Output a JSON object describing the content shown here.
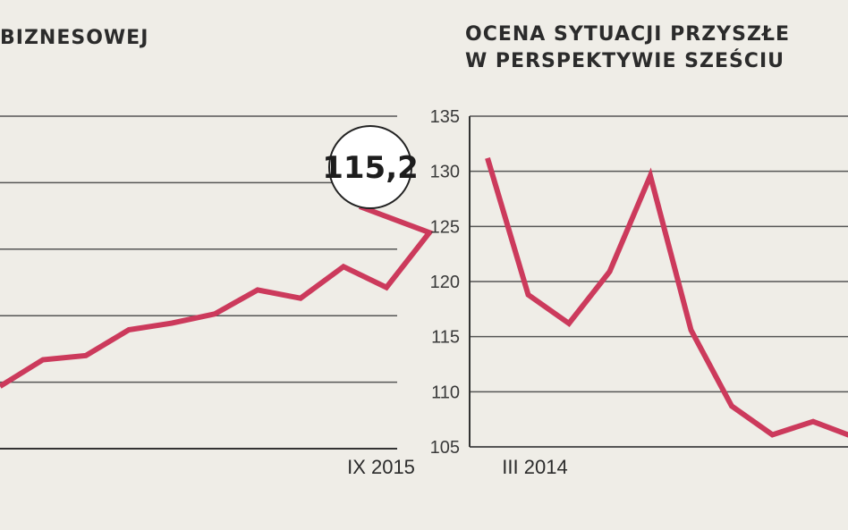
{
  "charts": {
    "left": {
      "title_lines": [
        "BIZNESOWEJ"
      ],
      "x_label_end": "IX 2015",
      "callout": "115,2"
    },
    "right": {
      "title_lines": [
        "OCENA SYTUACJI PRZYSZŁE",
        "W PERSPEKTYWIE SZEŚCIU"
      ],
      "x_label_start": "III 2014"
    }
  },
  "colors": {
    "line": "#cc3a5c",
    "grid": "#555555",
    "background": "#efede7"
  },
  "chart_data": [
    {
      "type": "line",
      "title": "BIZNESOWEJ",
      "x_end_label": "IX 2015",
      "annotation": "115,2",
      "ylim": [
        80,
        120
      ],
      "grid": true,
      "values": [
        87.5,
        90.7,
        91.2,
        94.3,
        95.1,
        96.2,
        99.1,
        98.1,
        101.9,
        99.4,
        106.0
      ],
      "last_value": 115.2
    },
    {
      "type": "line",
      "title": "OCENA SYTUACJI PRZYSZŁE W PERSPEKTYWIE SZEŚCIU",
      "x_start_label": "III 2014",
      "ylim": [
        105,
        135
      ],
      "yticks": [
        135,
        130,
        125,
        120,
        115,
        110,
        105
      ],
      "grid": true,
      "values": [
        131.2,
        118.8,
        116.2,
        120.9,
        129.6,
        115.6,
        108.7,
        106.1,
        107.3,
        105.9
      ]
    }
  ]
}
